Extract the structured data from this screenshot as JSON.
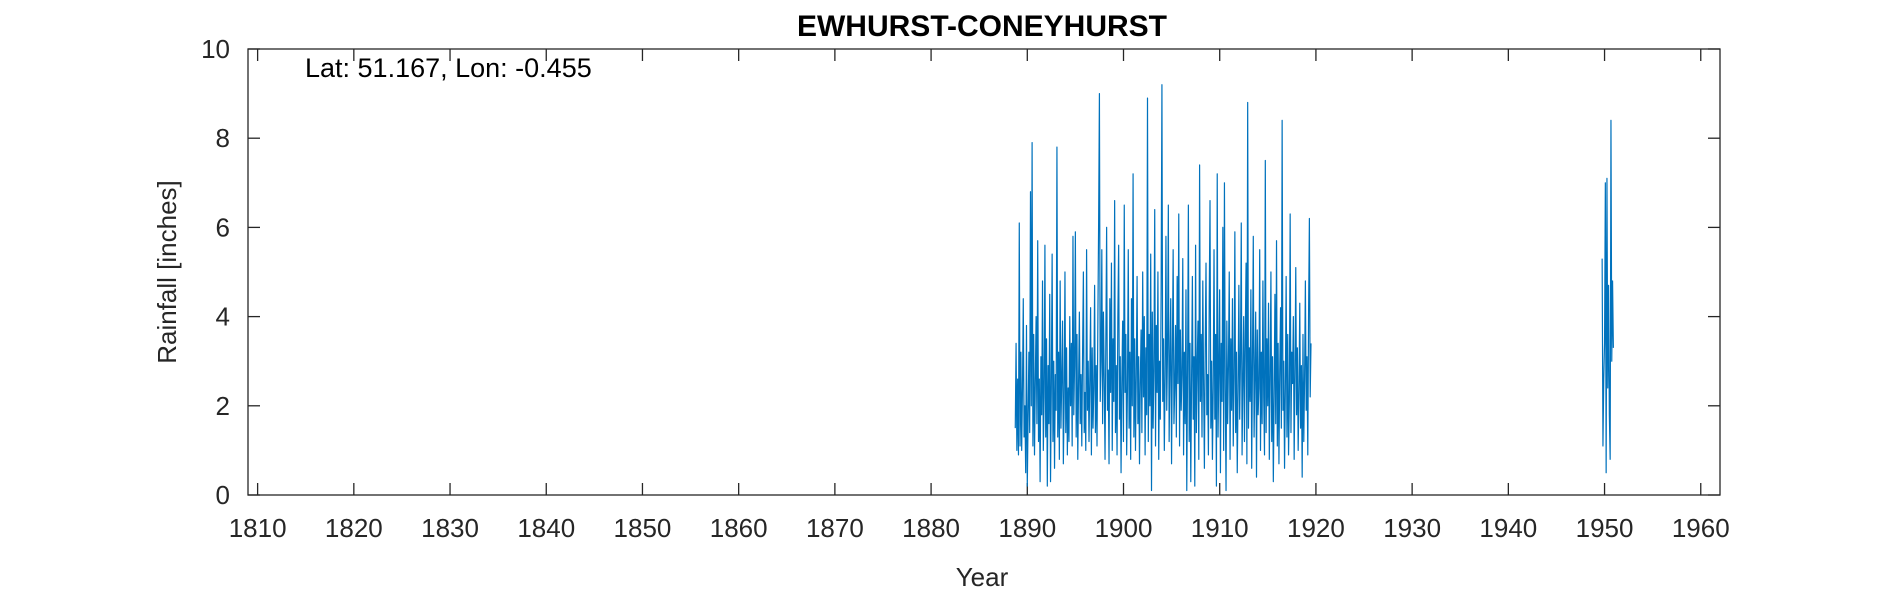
{
  "chart_data": {
    "type": "line",
    "title": "EWHURST-CONEYHURST",
    "xlabel": "Year",
    "ylabel": "Rainfall [inches]",
    "annotation": "Lat: 51.167, Lon: -0.455",
    "xlim": [
      1809,
      1962
    ],
    "ylim": [
      0,
      10
    ],
    "xticks": [
      1810,
      1820,
      1830,
      1840,
      1850,
      1860,
      1870,
      1880,
      1890,
      1900,
      1910,
      1920,
      1930,
      1940,
      1950,
      1960
    ],
    "yticks": [
      0,
      2,
      4,
      6,
      8,
      10
    ],
    "grid": false,
    "line_color": "#0072BD",
    "series": [
      {
        "segments": [
          {
            "start_year": 1888.75,
            "step": 0.0833,
            "values": [
              1.5,
              3.4,
              1.0,
              2.6,
              0.9,
              6.1,
              1.1,
              3.2,
              1.0,
              2.4,
              4.4,
              1.3,
              2.0,
              0.5,
              3.8,
              0.2,
              1.7,
              3.2,
              1.4,
              6.8,
              2.0,
              7.9,
              1.1,
              3.6,
              0.9,
              2.5,
              4.0,
              1.6,
              5.7,
              1.2,
              2.6,
              0.3,
              3.1,
              1.8,
              4.8,
              1.0,
              2.2,
              5.6,
              1.3,
              3.5,
              0.2,
              2.9,
              1.6,
              4.5,
              0.3,
              2.4,
              5.4,
              1.2,
              3.0,
              0.6,
              2.7,
              1.9,
              7.8,
              1.3,
              3.2,
              0.8,
              4.8,
              1.5,
              2.6,
              3.9,
              0.7,
              2.1,
              5.0,
              1.4,
              3.3,
              0.9,
              2.4,
              1.2,
              4.0,
              2.0,
              3.4,
              1.1,
              5.8,
              1.8,
              2.9,
              5.9,
              1.3,
              3.6,
              0.8,
              2.5,
              4.1,
              1.6,
              2.7,
              1.1,
              3.2,
              5.0,
              1.4,
              2.3,
              1.0,
              5.5,
              1.9,
              3.0,
              1.2,
              2.6,
              4.2,
              0.9,
              3.3,
              1.5,
              2.4,
              4.7,
              1.4,
              2.9,
              1.1,
              3.7,
              6.1,
              9.0,
              2.1,
              3.0,
              5.5,
              1.6,
              4.1,
              2.6,
              0.8,
              3.4,
              6.0,
              1.9,
              2.8,
              0.7,
              4.4,
              2.3,
              5.2,
              1.0,
              3.5,
              2.1,
              6.6,
              1.4,
              2.9,
              0.9,
              4.0,
              5.6,
              1.7,
              3.1,
              0.5,
              2.6,
              3.9,
              1.2,
              6.5,
              2.3,
              3.6,
              0.9,
              2.4,
              5.5,
              1.5,
              3.2,
              0.8,
              4.4,
              2.0,
              7.2,
              1.3,
              3.5,
              1.0,
              2.7,
              4.9,
              1.6,
              3.1,
              0.7,
              2.5,
              3.7,
              1.4,
              5.0,
              2.2,
              4.0,
              0.9,
              3.3,
              1.8,
              8.9,
              1.2,
              3.6,
              2.0,
              5.4,
              0.1,
              4.1,
              1.5,
              2.8,
              6.4,
              1.1,
              3.8,
              2.3,
              5.0,
              0.8,
              3.0,
              1.7,
              4.6,
              9.2,
              2.1,
              3.5,
              1.0,
              2.6,
              5.8,
              1.9,
              3.3,
              6.5,
              1.2,
              2.9,
              4.4,
              0.7,
              3.1,
              5.5,
              1.6,
              2.4,
              3.8,
              1.3,
              4.9,
              2.5,
              6.3,
              1.1,
              3.7,
              1.9,
              2.7,
              5.3,
              0.9,
              3.2,
              1.6,
              4.6,
              0.1,
              2.8,
              6.5,
              1.2,
              3.4,
              0.3,
              2.6,
              4.9,
              1.7,
              3.1,
              0.2,
              5.6,
              1.4,
              2.9,
              3.9,
              0.8,
              7.4,
              2.1,
              3.6,
              1.3,
              4.8,
              2.5,
              0.6,
              3.3,
              5.2,
              1.8,
              2.7,
              0.9,
              4.3,
              6.6,
              1.5,
              3.0,
              0.8,
              2.4,
              5.5,
              1.7,
              3.6,
              0.2,
              7.2,
              1.3,
              2.8,
              4.6,
              0.5,
              3.4,
              2.1,
              6.0,
              1.0,
              7.0,
              2.4,
              0.1,
              3.9,
              1.6,
              2.9,
              5.0,
              0.8,
              3.5,
              1.9,
              4.4,
              1.1,
              2.6,
              5.9,
              1.4,
              3.2,
              0.5,
              2.3,
              4.7,
              1.7,
              3.0,
              6.1,
              0.9,
              2.5,
              4.0,
              1.2,
              3.6,
              5.2,
              0.7,
              8.8,
              1.5,
              3.3,
              2.1,
              4.6,
              0.6,
              3.0,
              5.8,
              1.3,
              2.7,
              4.1,
              0.4,
              3.7,
              1.8,
              2.4,
              5.5,
              1.0,
              3.2,
              1.6,
              4.8,
              2.2,
              0.9,
              7.5,
              1.4,
              3.5,
              2.0,
              4.3,
              0.8,
              2.6,
              5.0,
              1.2,
              3.1,
              0.3,
              2.2,
              4.5,
              1.6,
              5.7,
              1.1,
              3.4,
              0.7,
              2.8,
              4.2,
              1.5,
              8.4,
              1.9,
              3.0,
              0.6,
              2.4,
              4.9,
              1.3,
              3.6,
              0.9,
              2.1,
              6.3,
              1.4,
              3.2,
              2.5,
              4.0,
              0.8,
              2.7,
              5.1,
              1.8,
              3.3,
              1.0,
              2.3,
              4.3,
              1.5,
              2.9,
              0.4,
              3.6,
              1.2,
              2.6,
              4.8,
              1.9,
              3.1,
              0.9,
              4.1,
              6.2,
              2.2,
              3.4
            ]
          },
          {
            "start_year": 1949.75,
            "step": 0.0833,
            "values": [
              5.3,
              1.1,
              2.6,
              3.4,
              7.0,
              0.5,
              7.1,
              2.4,
              4.7,
              1.8,
              0.8,
              8.4,
              3.0,
              4.8,
              3.3
            ]
          }
        ]
      }
    ]
  }
}
